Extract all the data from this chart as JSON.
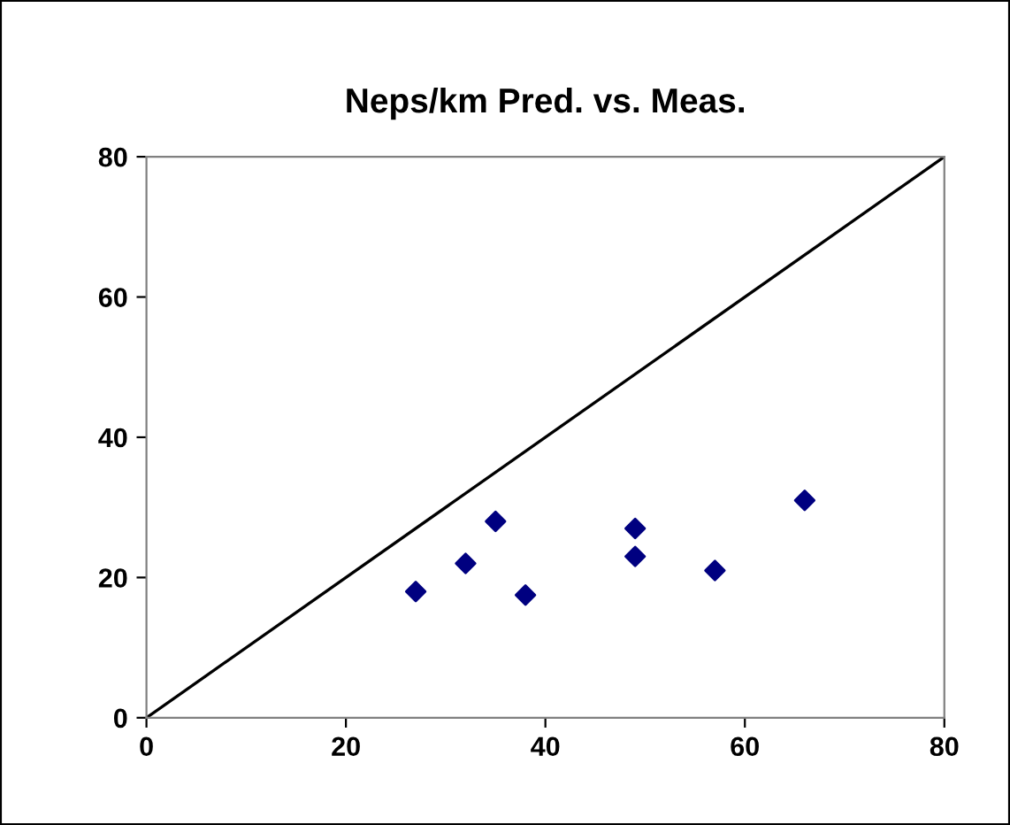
{
  "chart_data": {
    "type": "scatter",
    "title": "Neps/km Pred. vs. Meas.",
    "series": [
      {
        "marker": "diamond",
        "color": "#000080",
        "x": [
          27,
          32,
          35,
          38,
          49,
          49,
          57,
          66
        ],
        "values": [
          18,
          22,
          28,
          17.5,
          27,
          23,
          21,
          31
        ]
      },
      {
        "type": "line",
        "marker": "none",
        "color": "#000000",
        "x": [
          0,
          80
        ],
        "values": [
          0,
          80
        ]
      }
    ],
    "xlim": [
      0,
      80
    ],
    "ylim": [
      0,
      80
    ],
    "xticks": [
      0,
      20,
      40,
      60,
      80
    ],
    "yticks": [
      0,
      20,
      40,
      60,
      80
    ],
    "grid": false,
    "legend": false
  }
}
